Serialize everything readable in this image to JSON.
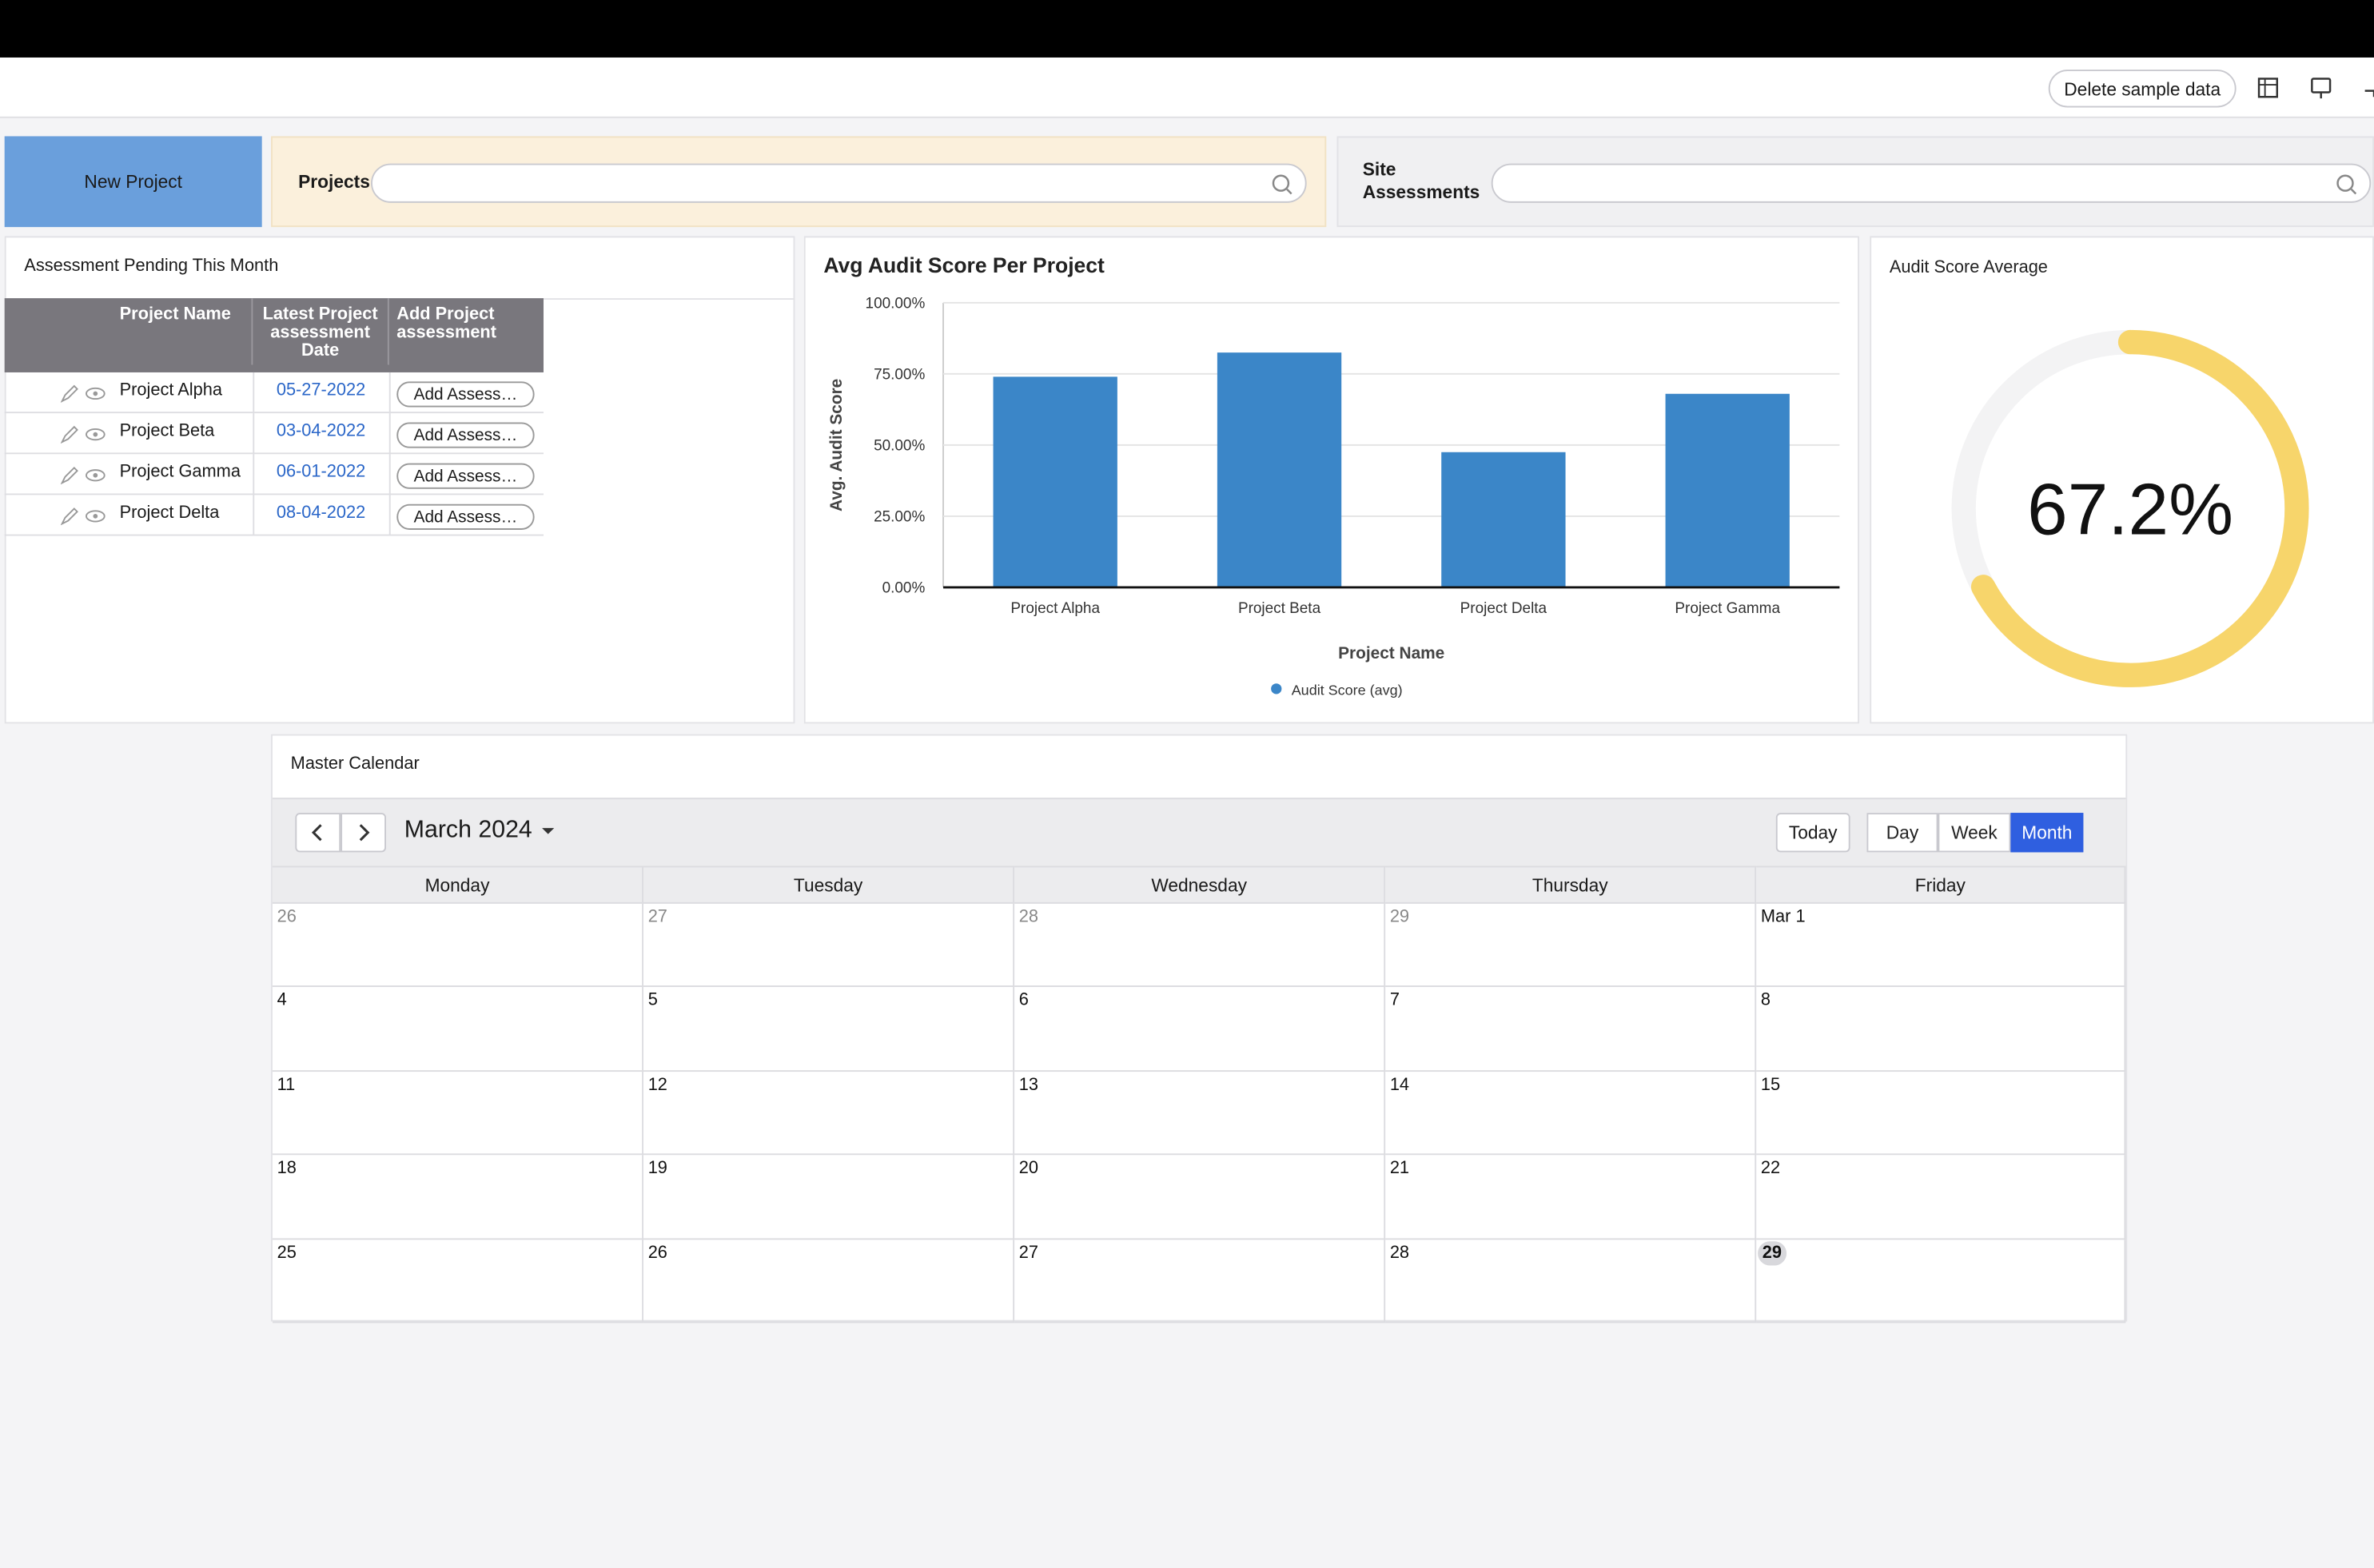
{
  "header": {
    "delete_button": "Delete sample data"
  },
  "filters": {
    "new_project": "New Project",
    "projects_label": "Projects",
    "site_label": "Site Assessments"
  },
  "pending": {
    "title": "Assessment Pending This Month",
    "columns": [
      "Project Name",
      "Latest Project assessment Date",
      "Add Project assessment"
    ],
    "rows": [
      [
        "Project Alpha",
        "05-27-2022",
        "Add Assess…"
      ],
      [
        "Project Beta",
        "03-04-2022",
        "Add Assess…"
      ],
      [
        "Project Gamma",
        "06-01-2022",
        "Add Assess…"
      ],
      [
        "Project Delta",
        "08-04-2022",
        "Add Assess…"
      ]
    ]
  },
  "chart_data": [
    {
      "type": "bar",
      "title": "Avg Audit Score Per Project",
      "x_label": "Project Name",
      "y_label": "Avg. Audit Score",
      "categories": [
        "Project Alpha",
        "Project Beta",
        "Project Delta",
        "Project Gamma"
      ],
      "series": [
        {
          "name": "Audit Score (avg)",
          "color": "#3b86c8",
          "values": [
            74,
            82.5,
            47.5,
            68
          ]
        }
      ],
      "ylim": [
        0,
        100
      ],
      "yticks": [
        {
          "value": 0,
          "label": "0.00%"
        },
        {
          "value": 25,
          "label": "25.00%"
        },
        {
          "value": 50,
          "label": "50.00%"
        },
        {
          "value": 75,
          "label": "75.00%"
        },
        {
          "value": 100,
          "label": "100.00%"
        }
      ],
      "grid": true
    },
    {
      "type": "gauge",
      "title": "Audit Score Average",
      "value": 67.2,
      "value_label": "67.2%",
      "ylim": [
        0,
        100
      ],
      "color": "#f7d56b"
    }
  ],
  "calendar": {
    "title": "Master Calendar",
    "month": "March 2024",
    "today": "Today",
    "views": [
      "Day",
      "Week",
      "Month"
    ],
    "weekdays": [
      "Monday",
      "Tuesday",
      "Wednesday",
      "Thursday",
      "Friday"
    ],
    "weeks": [
      [
        "26",
        "27",
        "28",
        "29",
        "Mar 1"
      ],
      [
        "4",
        "5",
        "6",
        "7",
        "8"
      ],
      [
        "11",
        "12",
        "13",
        "14",
        "15"
      ],
      [
        "18",
        "19",
        "20",
        "21",
        "22"
      ],
      [
        "25",
        "26",
        "27",
        "28",
        "29"
      ]
    ]
  }
}
